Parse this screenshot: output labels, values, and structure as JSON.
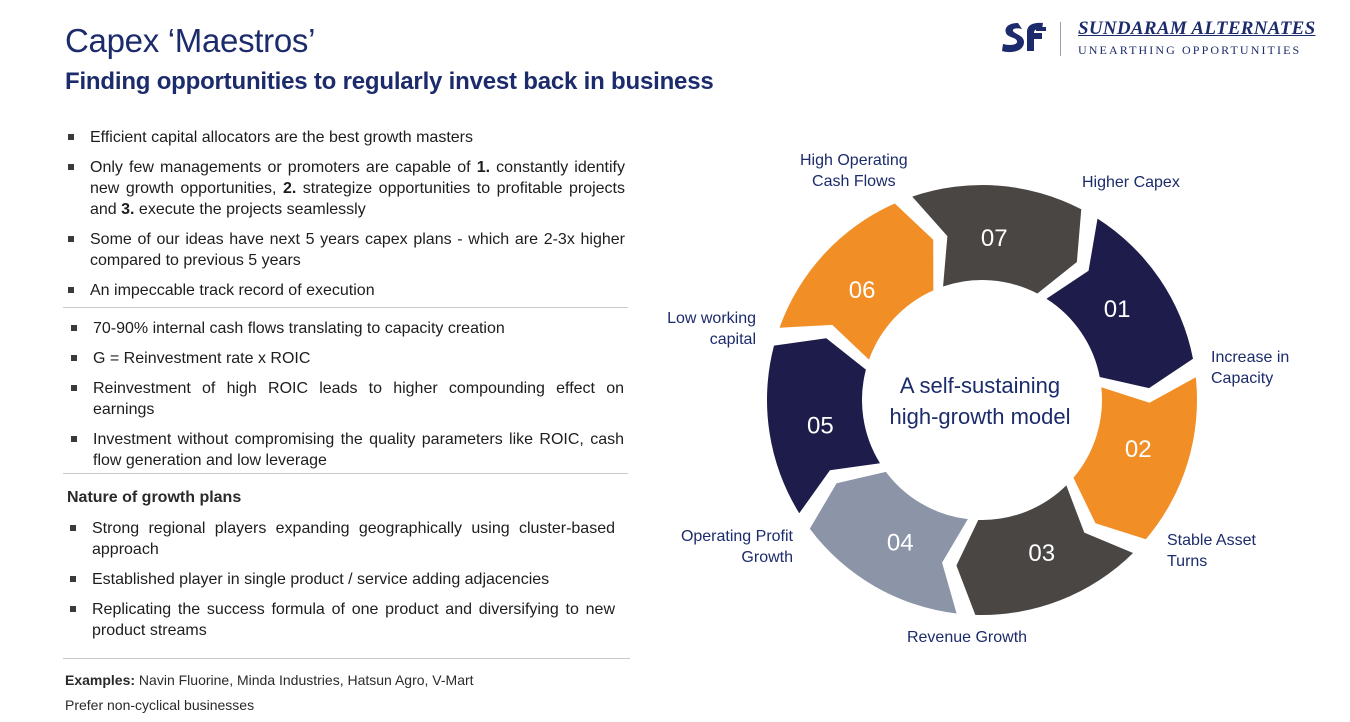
{
  "header": {
    "title": "Capex ‘Maestros’",
    "subtitle": "Finding opportunities to regularly invest back in business"
  },
  "logo": {
    "brand": "SUNDARAM ALTERNATES",
    "tagline": "UNEARTHING OPPORTUNITIES"
  },
  "bullets_1": [
    "Efficient capital allocators are the best growth masters",
    "Some of our ideas have next 5 years capex plans - which are 2-3x higher compared to previous 5 years",
    "An impeccable track record of execution"
  ],
  "bullet_managements": {
    "part1": "Only few managements or promoters are capable of ",
    "num1": "1.",
    "part2": " constantly identify new growth opportunities, ",
    "num2": "2.",
    "part3": " strategize opportunities to profitable projects and ",
    "num3": "3.",
    "part4": " execute the projects seamlessly"
  },
  "bullets_2": [
    "70-90% internal cash flows translating to capacity creation",
    "G = Reinvestment rate x ROIC",
    "Reinvestment of high ROIC leads to higher compounding effect on earnings",
    "Investment without compromising the quality parameters like ROIC, cash flow generation and low leverage"
  ],
  "growth_plans": {
    "heading": "Nature of growth plans",
    "items": [
      "Strong regional players expanding geographically using cluster-based approach",
      "Established player in single product / service adding adjacencies",
      "Replicating the success formula of one product and diversifying to new product streams"
    ]
  },
  "footer": {
    "examples_label": "Examples:",
    "examples_text": " Navin Fluorine, Minda Industries, Hatsun  Agro, V-Mart",
    "prefer": "Prefer non-cyclical businesses"
  },
  "cycle": {
    "center_line1": "A self-sustaining",
    "center_line2": "high-growth model",
    "stages": [
      {
        "num": "01",
        "label": [
          "Higher Capex"
        ],
        "color": "#1e1c4a"
      },
      {
        "num": "02",
        "label": [
          "Increase in",
          "Capacity"
        ],
        "color": "#f28e26"
      },
      {
        "num": "03",
        "label": [
          "Stable Asset",
          "Turns"
        ],
        "color": "#4a4644"
      },
      {
        "num": "04",
        "label": [
          "Revenue Growth"
        ],
        "color": "#8c95a8"
      },
      {
        "num": "05",
        "label": [
          "Operating Profit",
          "Growth"
        ],
        "color": "#1e1c4a"
      },
      {
        "num": "06",
        "label": [
          "Low working",
          "capital"
        ],
        "color": "#f28e26"
      },
      {
        "num": "07",
        "label": [
          "High Operating",
          "Cash Flows"
        ],
        "color": "#4a4644"
      }
    ]
  },
  "colors": {
    "brand_navy": "#1c2b6b",
    "orange": "#f28e26",
    "dark_navy": "#1e1c4a",
    "dark_gray": "#4a4644",
    "light_gray": "#8c95a8"
  }
}
